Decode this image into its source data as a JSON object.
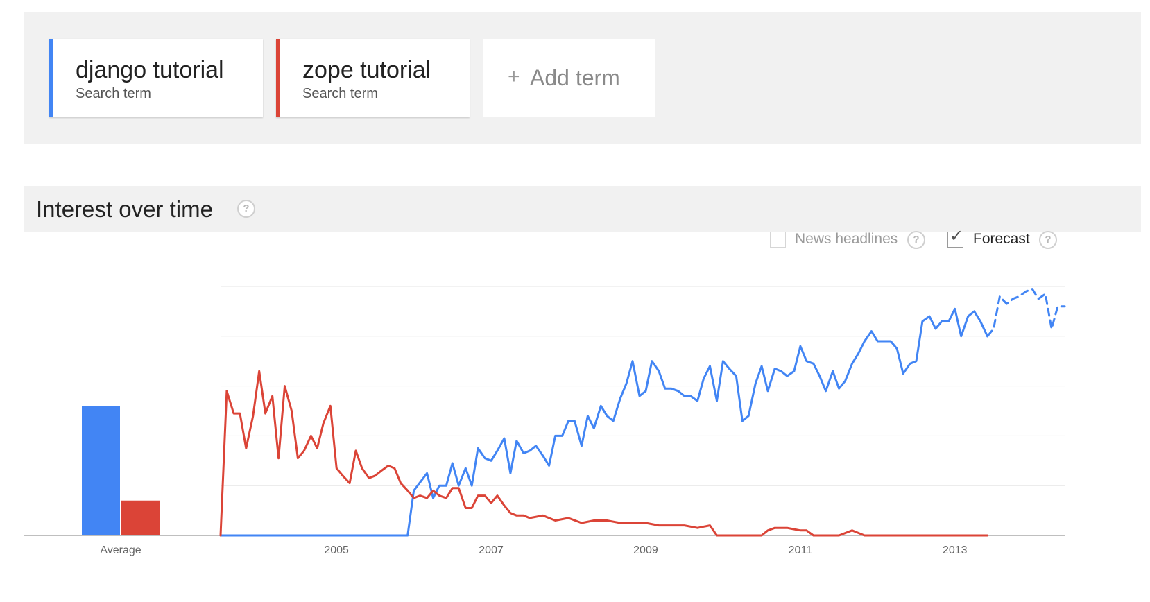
{
  "terms": [
    {
      "name": "django tutorial",
      "subtitle": "Search term",
      "color": "#4285f4"
    },
    {
      "name": "zope tutorial",
      "subtitle": "Search term",
      "color": "#db4437"
    }
  ],
  "add_term": {
    "plus": "+",
    "label": "Add term"
  },
  "interest": {
    "title": "Interest over time",
    "help": "?"
  },
  "options": {
    "news_headlines": {
      "label": "News headlines",
      "checked": false
    },
    "forecast": {
      "label": "Forecast",
      "checked": true
    }
  },
  "chart_data": {
    "type": "line",
    "title": "Interest over time",
    "xlabel": "",
    "ylabel": "",
    "ylim": [
      0,
      100
    ],
    "grid": true,
    "x_ticks": [
      "2005",
      "2007",
      "2009",
      "2011",
      "2013"
    ],
    "average": {
      "label": "Average",
      "values": [
        {
          "series": "django tutorial",
          "value": 52
        },
        {
          "series": "zope tutorial",
          "value": 14
        }
      ]
    },
    "series": [
      {
        "name": "django tutorial",
        "color": "#4285f4",
        "x": [
          2004.0,
          2006.42,
          2006.5,
          2006.67,
          2006.75,
          2006.83,
          2006.92,
          2007.0,
          2007.08,
          2007.17,
          2007.25,
          2007.33,
          2007.42,
          2007.5,
          2007.58,
          2007.67,
          2007.75,
          2007.83,
          2007.92,
          2008.0,
          2008.08,
          2008.17,
          2008.25,
          2008.33,
          2008.42,
          2008.5,
          2008.58,
          2008.67,
          2008.75,
          2008.83,
          2008.92,
          2009.0,
          2009.08,
          2009.17,
          2009.25,
          2009.33,
          2009.42,
          2009.5,
          2009.58,
          2009.67,
          2009.75,
          2009.83,
          2009.92,
          2010.0,
          2010.08,
          2010.17,
          2010.25,
          2010.33,
          2010.42,
          2010.5,
          2010.58,
          2010.67,
          2010.75,
          2010.83,
          2010.92,
          2011.0,
          2011.08,
          2011.17,
          2011.25,
          2011.33,
          2011.42,
          2011.5,
          2011.58,
          2011.67,
          2011.75,
          2011.83,
          2011.92,
          2012.0,
          2012.08,
          2012.17,
          2012.25,
          2012.33,
          2012.42,
          2012.5,
          2012.58,
          2012.67,
          2012.75,
          2012.83,
          2012.92,
          2013.0,
          2013.08,
          2013.17,
          2013.25,
          2013.33,
          2013.42,
          2013.5,
          2013.58,
          2013.67,
          2013.75,
          2013.83,
          2013.92
        ],
        "y": [
          0,
          0,
          18,
          25,
          15,
          20,
          20,
          29,
          20,
          27,
          20,
          35,
          31,
          30,
          34,
          39,
          25,
          38,
          33,
          34,
          36,
          32,
          28,
          40,
          40,
          46,
          46,
          36,
          48,
          43,
          52,
          48,
          46,
          55,
          61,
          70,
          56,
          58,
          70,
          66,
          59,
          59,
          58,
          56,
          56,
          54,
          63,
          68,
          54,
          70,
          67,
          64,
          46,
          48,
          61,
          68,
          58,
          67,
          66,
          64,
          66,
          76,
          70,
          69,
          64,
          58,
          66,
          59,
          62,
          69,
          73,
          78,
          82,
          78,
          78,
          78,
          75,
          65,
          69,
          70,
          86,
          88,
          83,
          86,
          86,
          91,
          80,
          88,
          90,
          86,
          80
        ]
      },
      {
        "name": "zope tutorial",
        "color": "#db4437",
        "x": [
          2004.0,
          2004.08,
          2004.17,
          2004.25,
          2004.33,
          2004.42,
          2004.5,
          2004.58,
          2004.67,
          2004.75,
          2004.83,
          2004.92,
          2005.0,
          2005.08,
          2005.17,
          2005.25,
          2005.33,
          2005.42,
          2005.5,
          2005.58,
          2005.67,
          2005.75,
          2005.83,
          2005.92,
          2006.0,
          2006.08,
          2006.17,
          2006.25,
          2006.33,
          2006.42,
          2006.5,
          2006.58,
          2006.67,
          2006.75,
          2006.83,
          2006.92,
          2007.0,
          2007.08,
          2007.17,
          2007.25,
          2007.33,
          2007.42,
          2007.5,
          2007.58,
          2007.67,
          2007.75,
          2007.83,
          2007.92,
          2008.0,
          2008.17,
          2008.33,
          2008.5,
          2008.67,
          2008.83,
          2009.0,
          2009.17,
          2009.33,
          2009.5,
          2009.67,
          2009.83,
          2010.0,
          2010.17,
          2010.33,
          2010.42,
          2010.5,
          2010.67,
          2010.83,
          2011.0,
          2011.08,
          2011.17,
          2011.33,
          2011.5,
          2011.58,
          2011.67,
          2011.83,
          2012.0,
          2012.17,
          2012.25,
          2012.33,
          2012.5,
          2012.67,
          2012.83,
          2013.0,
          2013.17,
          2013.33,
          2013.5,
          2013.67,
          2013.83,
          2013.92
        ],
        "y": [
          0,
          58,
          49,
          49,
          35,
          48,
          66,
          49,
          56,
          31,
          60,
          50,
          31,
          34,
          40,
          35,
          45,
          52,
          27,
          24,
          21,
          34,
          27,
          23,
          24,
          26,
          28,
          27,
          21,
          18,
          15,
          16,
          15,
          18,
          16,
          15,
          19,
          19,
          11,
          11,
          16,
          16,
          13,
          16,
          12,
          9,
          8,
          8,
          7,
          8,
          6,
          7,
          5,
          6,
          6,
          5,
          5,
          5,
          4,
          4,
          4,
          3,
          4,
          0,
          0,
          0,
          0,
          0,
          2,
          3,
          3,
          2,
          2,
          0,
          0,
          0,
          2,
          1,
          0,
          0,
          0,
          0,
          0,
          0,
          0,
          0,
          0,
          0,
          0
        ]
      },
      {
        "name": "django tutorial (forecast)",
        "color": "#4285f4",
        "dashed": true,
        "x": [
          2013.92,
          2014.0,
          2014.08,
          2014.17,
          2014.25,
          2014.33,
          2014.42,
          2014.5,
          2014.58,
          2014.67,
          2014.75,
          2014.83,
          2014.92
        ],
        "y": [
          80,
          83,
          96,
          93,
          95,
          96,
          98,
          99,
          95,
          97,
          83,
          92,
          92
        ]
      }
    ]
  }
}
